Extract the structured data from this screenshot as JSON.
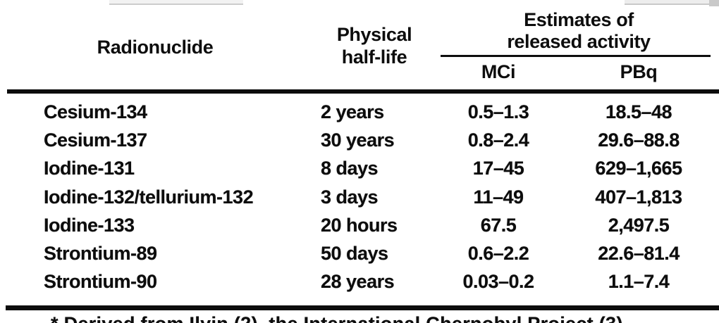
{
  "table": {
    "headers": {
      "radionuclide": "Radionuclide",
      "half_life_line1": "Physical",
      "half_life_line2": "half-life",
      "estimates_line1": "Estimates of",
      "estimates_line2": "released activity",
      "unit_mci": "MCi",
      "unit_pbq": "PBq"
    },
    "rows": [
      {
        "radionuclide": "Cesium-134",
        "half_life": "2 years",
        "mci": "0.5–1.3",
        "pbq": "18.5–48"
      },
      {
        "radionuclide": "Cesium-137",
        "half_life": "30 years",
        "mci": "0.8–2.4",
        "pbq": "29.6–88.8"
      },
      {
        "radionuclide": "Iodine-131",
        "half_life": "8 days",
        "mci": "17–45",
        "pbq": "629–1,665"
      },
      {
        "radionuclide": "Iodine-132/tellurium-132",
        "half_life": "3 days",
        "mci": "11–49",
        "pbq": "407–1,813"
      },
      {
        "radionuclide": "Iodine-133",
        "half_life": "20 hours",
        "mci": "67.5",
        "pbq": "2,497.5"
      },
      {
        "radionuclide": "Strontium-89",
        "half_life": "50 days",
        "mci": "0.6–2.2",
        "pbq": "22.6–81.4"
      },
      {
        "radionuclide": "Strontium-90",
        "half_life": "28 years",
        "mci": "0.03–0.2",
        "pbq": "1.1–7.4"
      }
    ],
    "footnote_clipped": "* Derived from Ilyin (2), the International Chernobyl Project (3)"
  },
  "colors": {
    "ink": "#0d0d0d",
    "paper": "#ffffff",
    "smudge_gray": "#c9c9c9"
  }
}
